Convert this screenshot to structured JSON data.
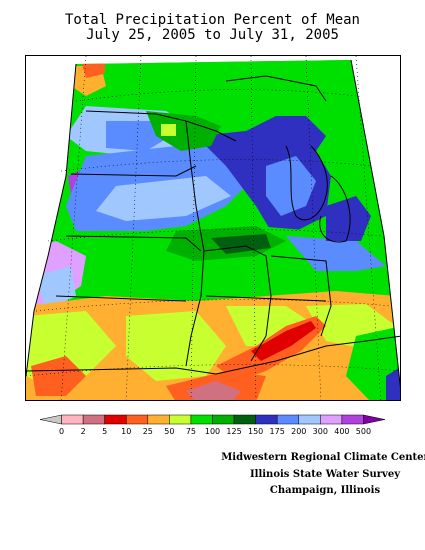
{
  "title": {
    "line1": "Total Precipitation Percent of Mean",
    "line2": "July 25, 2005 to July 31, 2005"
  },
  "legend": {
    "labels": [
      "0",
      "2",
      "5",
      "10",
      "25",
      "50",
      "75",
      "100",
      "125",
      "150",
      "175",
      "200",
      "300",
      "400",
      "500"
    ],
    "colors": [
      "#c8c8c8",
      "#ffb4c0",
      "#d07080",
      "#e00000",
      "#ff6020",
      "#ffb030",
      "#c8ff30",
      "#00e000",
      "#00b000",
      "#006010",
      "#3030c0",
      "#5a8cff",
      "#a0c8ff",
      "#e0a0ff",
      "#b040e0",
      "#8000a0"
    ]
  },
  "credits": {
    "line1": "Midwestern Regional Climate Center",
    "line2": "Illinois State Water Survey",
    "line3": "Champaign, Illinois"
  }
}
